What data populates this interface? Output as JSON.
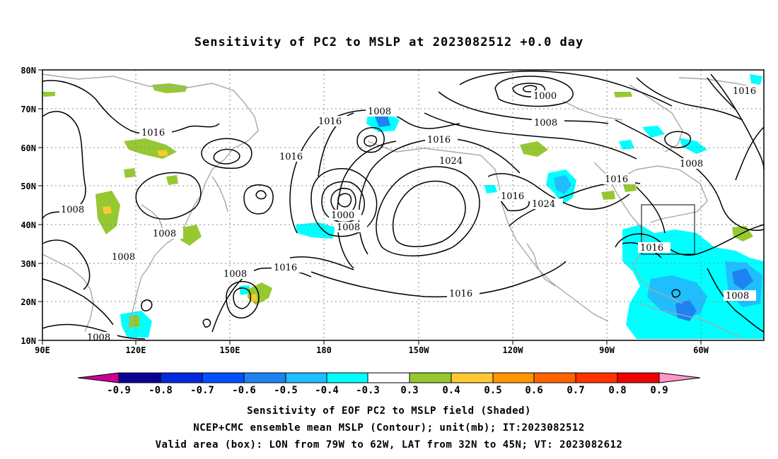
{
  "title": "Sensitivity of PC2 to MSLP at 2023082512 +0.0 day",
  "map": {
    "lon_labels": [
      "90E",
      "120E",
      "150E",
      "180",
      "150W",
      "120W",
      "90W",
      "60W"
    ],
    "lat_labels": [
      "80N",
      "70N",
      "60N",
      "50N",
      "40N",
      "30N",
      "20N",
      "10N"
    ],
    "lon_range": [
      90,
      310
    ],
    "lat_range": [
      10,
      80
    ],
    "grid": true,
    "contour_labels": [
      "1016",
      "1008",
      "1016",
      "1016",
      "1008",
      "1000",
      "1008",
      "1016",
      "1024",
      "1016",
      "1024",
      "1016",
      "1008",
      "1016",
      "1008",
      "1000",
      "1008",
      "1008",
      "1008",
      "1016",
      "1016",
      "1008",
      "1008"
    ],
    "valid_box": {
      "lon_min": -79,
      "lon_max": -62,
      "lat_min": 32,
      "lat_max": 45
    }
  },
  "colorbar": {
    "labels": [
      "-0.9",
      "-0.8",
      "-0.7",
      "-0.6",
      "-0.5",
      "-0.4",
      "-0.3",
      "0.3",
      "0.4",
      "0.5",
      "0.6",
      "0.7",
      "0.8",
      "0.9"
    ],
    "colors": [
      "#0a0096",
      "#0028dc",
      "#0050ff",
      "#1e82f0",
      "#1ebeff",
      "#00ffff",
      "#ffffff",
      "#96c832",
      "#ffc832",
      "#ff9600",
      "#ff6400",
      "#ff3200",
      "#f00000"
    ],
    "low_end_color": "#c80096",
    "high_end_color": "#ff96c8"
  },
  "captions": [
    "Sensitivity of EOF PC2 to MSLP field (Shaded)",
    "NCEP+CMC ensemble mean MSLP (Contour); unit(mb); IT:2023082512",
    "Valid area (box): LON from 79W to 62W, LAT from 32N to 45N; VT: 2023082612"
  ]
}
